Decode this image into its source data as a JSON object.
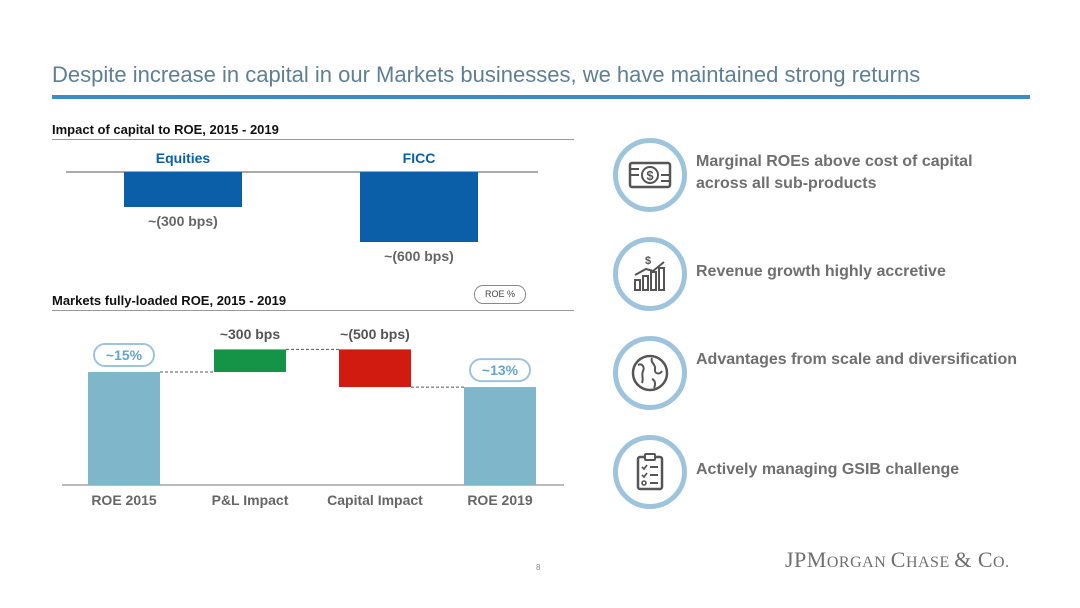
{
  "slide": {
    "title": "Despite increase in capital in our Markets businesses, we have maintained strong returns",
    "page_number": "8",
    "logo_text": "JPMorgan Chase & Co."
  },
  "capital_section": {
    "title": "Impact of capital to ROE, 2015 - 2019"
  },
  "roe_section": {
    "title": "Markets fully-loaded ROE, 2015 - 2019",
    "legend_badge": "ROE %"
  },
  "right_points": [
    {
      "text": "Marginal ROEs above cost of capital across all sub-products",
      "icon": "dollar-bill-icon"
    },
    {
      "text": "Revenue growth highly accretive",
      "icon": "revenue-growth-icon"
    },
    {
      "text": "Advantages from scale and diversification",
      "icon": "globe-icon"
    },
    {
      "text": "Actively managing GSIB challenge",
      "icon": "checklist-icon"
    }
  ],
  "colors": {
    "capital_bar": "#0a5fa8",
    "roe_bar": "#7fb6c9",
    "positive": "#159447",
    "negative": "#d11a10",
    "accent_line": "#3f8cc2",
    "bubble": "#9ec4dd"
  },
  "chart_data": [
    {
      "type": "bar",
      "title": "Impact of capital to ROE, 2015 - 2019",
      "categories": [
        "Equities",
        "FICC"
      ],
      "values": [
        -300,
        -600
      ],
      "unit": "bps",
      "data_labels": [
        "~(300 bps)",
        "~(600 bps)"
      ],
      "ylim": [
        -600,
        0
      ]
    },
    {
      "type": "bar",
      "subtype": "waterfall",
      "title": "Markets fully-loaded ROE, 2015 - 2019",
      "categories": [
        "ROE 2015",
        "P&L Impact",
        "Capital Impact",
        "ROE 2019"
      ],
      "values": [
        15,
        3,
        -5,
        13
      ],
      "kinds": [
        "total",
        "delta",
        "delta",
        "total"
      ],
      "data_labels": [
        "~15%",
        "~300 bps",
        "~(500 bps)",
        "~13%"
      ],
      "legend": "ROE %"
    }
  ]
}
